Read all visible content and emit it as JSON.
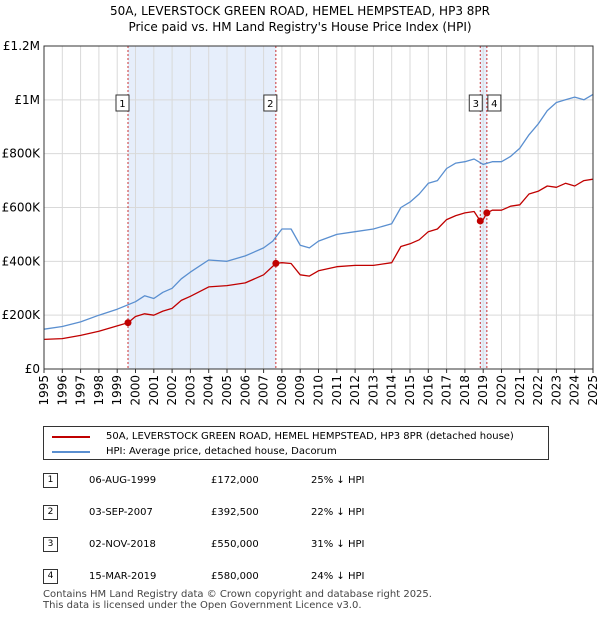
{
  "title": {
    "line1": "50A, LEVERSTOCK GREEN ROAD, HEMEL HEMPSTEAD, HP3 8PR",
    "line2": "Price paid vs. HM Land Registry's House Price Index (HPI)"
  },
  "colors": {
    "property": "#c00000",
    "hpi": "#5a8fd0",
    "shade": "#e6eefb",
    "grid": "#d9d9d9"
  },
  "chart_data": {
    "type": "line",
    "xlim": [
      1995,
      2025
    ],
    "ylim": [
      0,
      1200000
    ],
    "y_ticks": [
      {
        "value": 0,
        "label": "£0"
      },
      {
        "value": 200000,
        "label": "£200K"
      },
      {
        "value": 400000,
        "label": "£400K"
      },
      {
        "value": 600000,
        "label": "£600K"
      },
      {
        "value": 800000,
        "label": "£800K"
      },
      {
        "value": 1000000,
        "label": "£1M"
      },
      {
        "value": 1200000,
        "label": "£1.2M"
      }
    ],
    "x_ticks": [
      "1995",
      "1996",
      "1997",
      "1998",
      "1999",
      "2000",
      "2001",
      "2002",
      "2003",
      "2004",
      "2005",
      "2006",
      "2007",
      "2008",
      "2009",
      "2010",
      "2011",
      "2012",
      "2013",
      "2014",
      "2015",
      "2016",
      "2017",
      "2018",
      "2019",
      "2020",
      "2021",
      "2022",
      "2023",
      "2024",
      "2025"
    ],
    "shaded_ranges": [
      [
        1999.59,
        2007.67
      ],
      [
        2018.84,
        2019.2
      ]
    ],
    "series": [
      {
        "name": "hpi",
        "x": [
          1995.0,
          1996.0,
          1997.0,
          1998.0,
          1999.0,
          2000.0,
          2000.5,
          2001.0,
          2001.5,
          2002.0,
          2002.5,
          2003.0,
          2004.0,
          2005.0,
          2006.0,
          2007.0,
          2007.5,
          2008.0,
          2008.5,
          2009.0,
          2009.5,
          2010.0,
          2011.0,
          2012.0,
          2013.0,
          2014.0,
          2014.5,
          2015.0,
          2015.5,
          2016.0,
          2016.5,
          2017.0,
          2017.5,
          2018.0,
          2018.5,
          2019.0,
          2019.5,
          2020.0,
          2020.5,
          2021.0,
          2021.5,
          2022.0,
          2022.5,
          2023.0,
          2023.5,
          2024.0,
          2024.5,
          2025.0
        ],
        "values": [
          148000,
          158000,
          175000,
          200000,
          222000,
          250000,
          272000,
          262000,
          285000,
          300000,
          335000,
          360000,
          405000,
          400000,
          420000,
          450000,
          475000,
          520000,
          520000,
          460000,
          450000,
          475000,
          500000,
          510000,
          520000,
          540000,
          600000,
          620000,
          650000,
          690000,
          700000,
          745000,
          765000,
          770000,
          780000,
          760000,
          770000,
          770000,
          790000,
          820000,
          870000,
          910000,
          960000,
          990000,
          1000000,
          1010000,
          1000000,
          1020000
        ]
      },
      {
        "name": "property",
        "x": [
          1995.0,
          1996.0,
          1997.0,
          1998.0,
          1999.0,
          1999.59,
          2000.0,
          2000.5,
          2001.0,
          2001.5,
          2002.0,
          2002.5,
          2003.0,
          2004.0,
          2005.0,
          2006.0,
          2007.0,
          2007.67,
          2008.0,
          2008.5,
          2009.0,
          2009.5,
          2010.0,
          2011.0,
          2012.0,
          2013.0,
          2014.0,
          2014.5,
          2015.0,
          2015.5,
          2016.0,
          2016.5,
          2017.0,
          2017.5,
          2018.0,
          2018.5,
          2018.84,
          2019.0,
          2019.2,
          2019.5,
          2020.0,
          2020.5,
          2021.0,
          2021.5,
          2022.0,
          2022.5,
          2023.0,
          2023.5,
          2024.0,
          2024.5,
          2025.0
        ],
        "values": [
          110000,
          113000,
          125000,
          140000,
          160000,
          172000,
          195000,
          205000,
          200000,
          215000,
          225000,
          255000,
          270000,
          305000,
          310000,
          320000,
          350000,
          392500,
          395000,
          392000,
          350000,
          345000,
          365000,
          380000,
          385000,
          385000,
          395000,
          455000,
          465000,
          480000,
          510000,
          520000,
          555000,
          570000,
          580000,
          585000,
          550000,
          555000,
          580000,
          590000,
          590000,
          605000,
          610000,
          650000,
          660000,
          680000,
          675000,
          690000,
          680000,
          700000,
          705000
        ]
      }
    ],
    "sales": [
      {
        "n": "1",
        "x": 1999.59,
        "value": 172000
      },
      {
        "n": "2",
        "x": 2007.67,
        "value": 392500
      },
      {
        "n": "3",
        "x": 2018.84,
        "value": 550000
      },
      {
        "n": "4",
        "x": 2019.2,
        "value": 580000
      }
    ]
  },
  "legend": {
    "property_label": "50A, LEVERSTOCK GREEN ROAD, HEMEL HEMPSTEAD, HP3 8PR (detached house)",
    "hpi_label": "HPI: Average price, detached house, Dacorum"
  },
  "sales_table": [
    {
      "n": "1",
      "date": "06-AUG-1999",
      "price": "£172,000",
      "hpi": "25% ↓ HPI"
    },
    {
      "n": "2",
      "date": "03-SEP-2007",
      "price": "£392,500",
      "hpi": "22% ↓ HPI"
    },
    {
      "n": "3",
      "date": "02-NOV-2018",
      "price": "£550,000",
      "hpi": "31% ↓ HPI"
    },
    {
      "n": "4",
      "date": "15-MAR-2019",
      "price": "£580,000",
      "hpi": "24% ↓ HPI"
    }
  ],
  "footer": {
    "line1": "Contains HM Land Registry data © Crown copyright and database right 2025.",
    "line2": "This data is licensed under the Open Government Licence v3.0."
  }
}
